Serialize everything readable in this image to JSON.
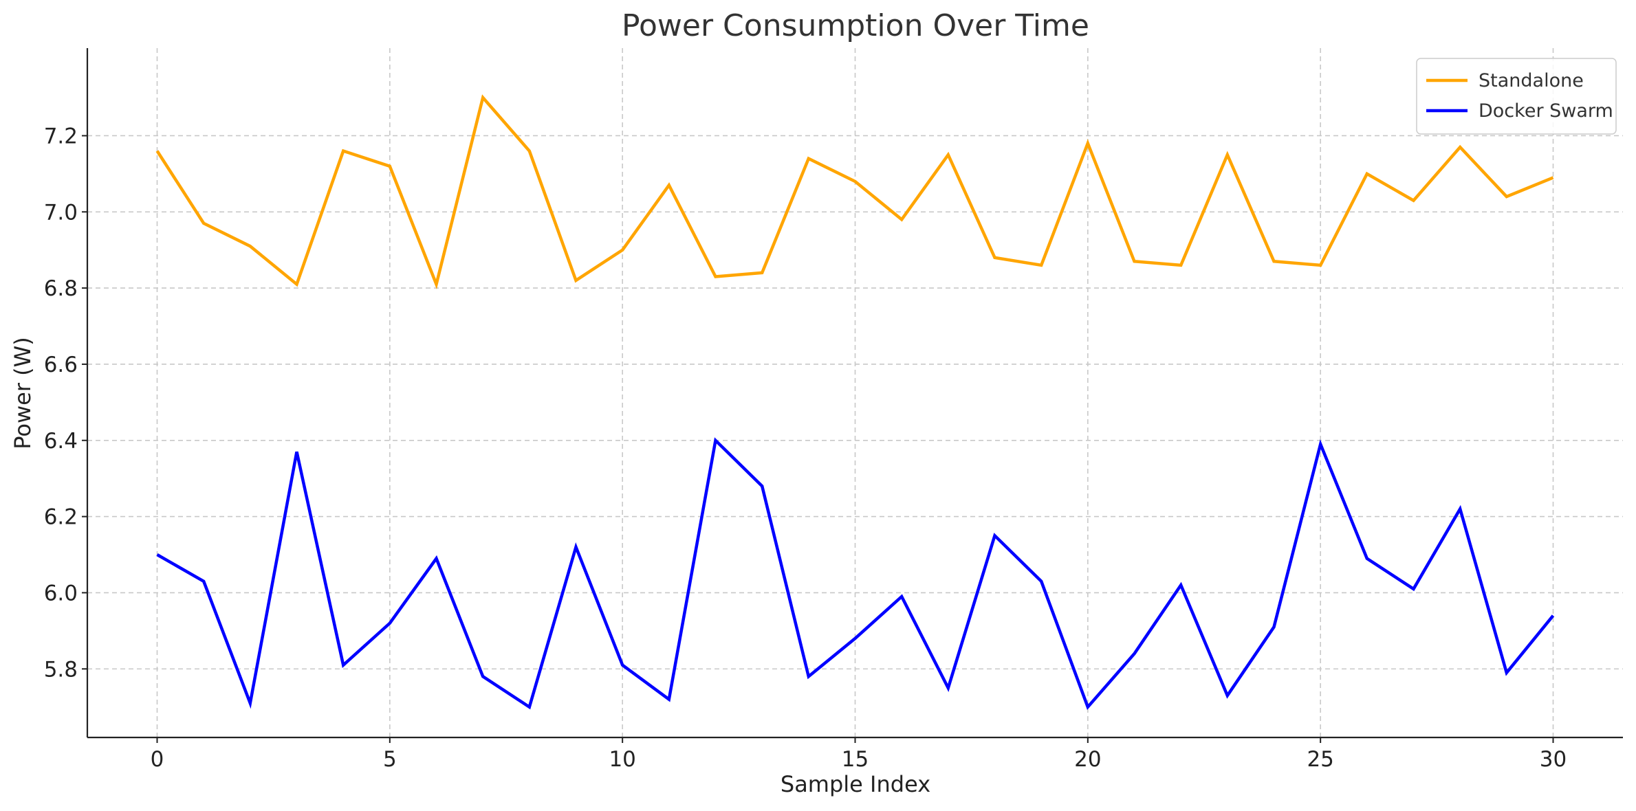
{
  "chart_data": {
    "type": "line",
    "title": "Power Consumption Over Time",
    "xlabel": "Sample Index",
    "ylabel": "Power (W)",
    "xlim": [
      -1.5,
      31.5
    ],
    "ylim": [
      5.62,
      7.43
    ],
    "x_ticks": [
      0,
      5,
      10,
      15,
      20,
      25,
      30
    ],
    "x_tick_labels": [
      "0",
      "5",
      "10",
      "15",
      "20",
      "25",
      "30"
    ],
    "y_ticks": [
      5.8,
      6.0,
      6.2,
      6.4,
      6.6,
      6.8,
      7.0,
      7.2
    ],
    "y_tick_labels": [
      "5.8",
      "6.0",
      "6.2",
      "6.4",
      "6.6",
      "6.8",
      "7.0",
      "7.2"
    ],
    "grid": true,
    "legend_position": "top-right",
    "x": [
      0,
      1,
      2,
      3,
      4,
      5,
      6,
      7,
      8,
      9,
      10,
      11,
      12,
      13,
      14,
      15,
      16,
      17,
      18,
      19,
      20,
      21,
      22,
      23,
      24,
      25,
      26,
      27,
      28,
      29,
      30
    ],
    "series": [
      {
        "name": "Standalone",
        "color": "#FFA500",
        "values": [
          7.16,
          6.97,
          6.91,
          6.81,
          7.16,
          7.12,
          6.81,
          7.3,
          7.16,
          6.82,
          6.9,
          7.07,
          6.83,
          6.84,
          7.14,
          7.08,
          6.98,
          7.15,
          6.88,
          6.86,
          7.18,
          6.87,
          6.86,
          7.15,
          6.87,
          6.86,
          7.1,
          7.03,
          7.17,
          7.04,
          7.09
        ]
      },
      {
        "name": "Docker Swarm",
        "color": "#0000FF",
        "values": [
          6.1,
          6.03,
          5.71,
          6.37,
          5.81,
          5.92,
          6.09,
          5.78,
          5.7,
          6.12,
          5.81,
          5.72,
          6.4,
          6.28,
          5.78,
          5.88,
          5.99,
          5.75,
          6.15,
          6.03,
          5.7,
          5.84,
          6.02,
          5.73,
          5.91,
          6.39,
          6.09,
          6.01,
          6.22,
          5.79,
          5.94
        ]
      }
    ]
  }
}
